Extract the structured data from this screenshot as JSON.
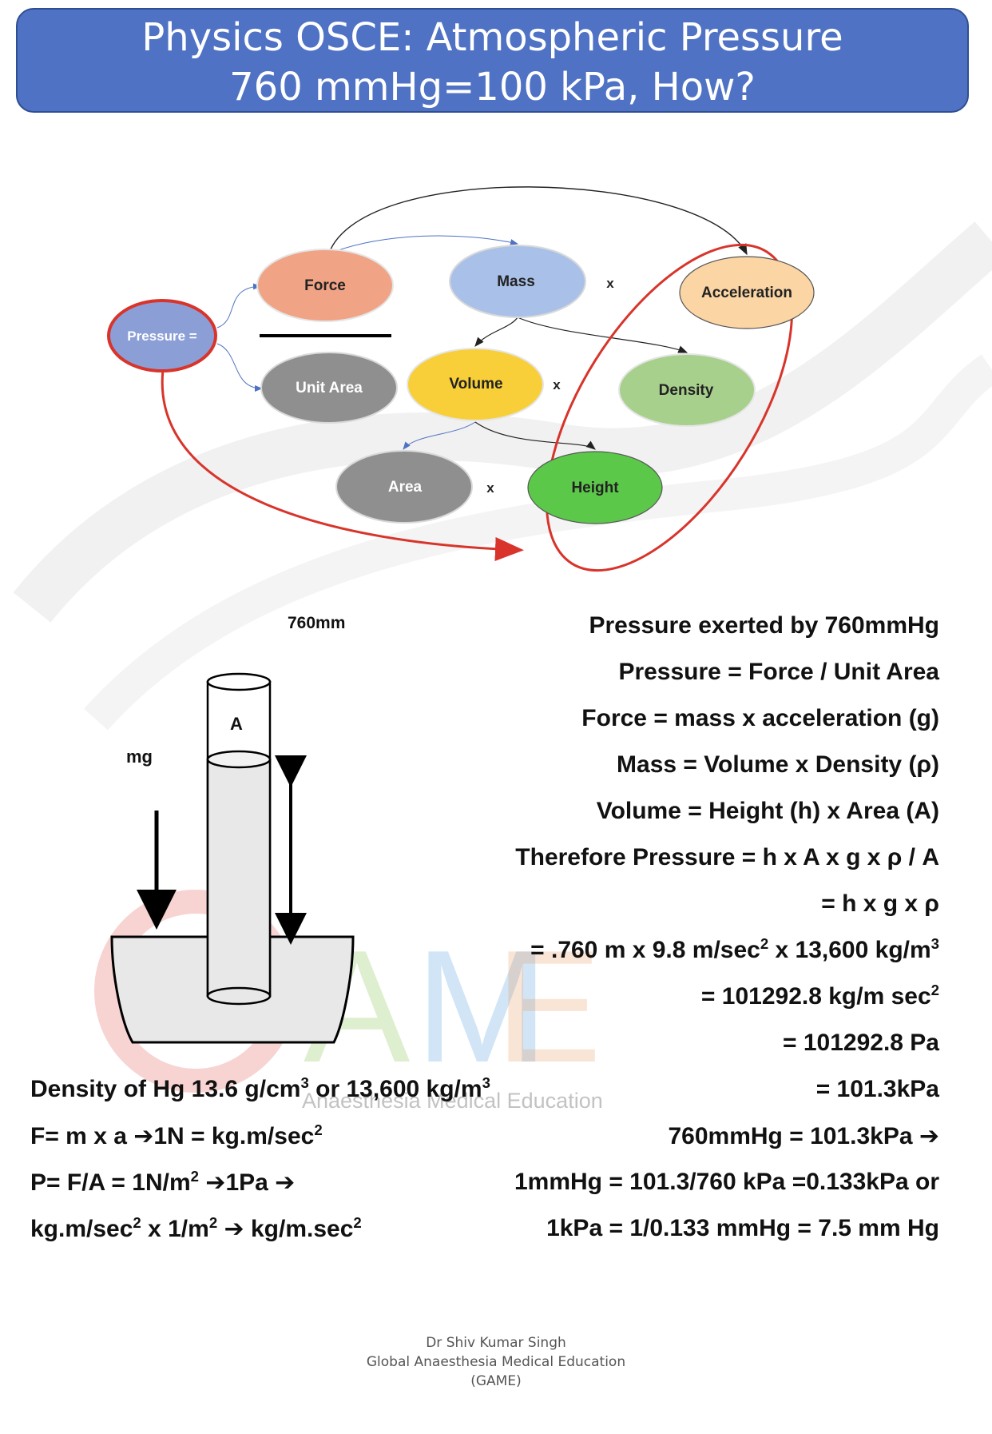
{
  "title": {
    "line1": "Physics OSCE: Atmospheric Pressure",
    "line2": "760 mmHg=100 kPa, How?"
  },
  "diagram": {
    "nodes": {
      "pressure": "Pressure =",
      "force": "Force",
      "unit_area": "Unit Area",
      "mass": "Mass",
      "acceleration": "Acceleration",
      "volume": "Volume",
      "density": "Density",
      "area": "Area",
      "height": "Height"
    },
    "multiply_sign": "x",
    "colors": {
      "pressure": "#8b9fd6",
      "force": "#f0a385",
      "unit_area": "#8f8f8f",
      "mass": "#a9c1e8",
      "acceleration": "#fbd5a4",
      "volume": "#f8cf38",
      "density": "#a8d08d",
      "area": "#8f8f8f",
      "height": "#5cc84a",
      "highlight": "#d8342b"
    }
  },
  "barometer": {
    "top_label": "760mm",
    "area_label": "A",
    "weight_label": "mg"
  },
  "right_equations": {
    "l1": "Pressure exerted by 760mmHg",
    "l2": "Pressure = Force / Unit Area",
    "l3": "Force = mass x acceleration (g)",
    "l4": "Mass = Volume x Density (ρ)",
    "l5": "Volume = Height (h) x Area (A)",
    "l6": "Therefore Pressure = h x A x g x ρ / A",
    "l7": "= h x g x ρ",
    "l8_a": "= .760 m x 9.8 m/sec",
    "l8_b": "2",
    "l8_c": " x 13,600 kg/m",
    "l8_d": "3",
    "l9_a": "= 101292.8 kg/m sec",
    "l9_b": "2",
    "l10": "= 101292.8 Pa",
    "l11": "= 101.3kPa",
    "l12": "760mmHg = 101.3kPa ➔",
    "l13": "1mmHg = 101.3/760 kPa =0.133kPa or",
    "l14": "1kPa = 1/0.133 mmHg = 7.5 mm Hg"
  },
  "left_equations": {
    "density_a": "Density of Hg 13.6 g/cm",
    "density_b": "3",
    "density_c": " or 13,600 kg/m",
    "density_d": "3",
    "force_a": "F= m x a ➔1N =  kg.m/sec",
    "force_b": "2",
    "pressure_a": "P= F/A = 1N/m",
    "pressure_b": "2",
    "pressure_c": " ➔1Pa ➔",
    "units_a": "kg.m/sec",
    "units_b": "2",
    "units_c": " x 1/m",
    "units_d": "2",
    "units_e": " ➔ kg/m.sec",
    "units_f": "2"
  },
  "watermark": {
    "letters": [
      "A",
      "M",
      "E"
    ],
    "subtitle": "Anaesthesia Medical Education"
  },
  "footer": {
    "line1": "Dr Shiv Kumar Singh",
    "line2": "Global Anaesthesia Medical Education",
    "line3": "(GAME)"
  }
}
